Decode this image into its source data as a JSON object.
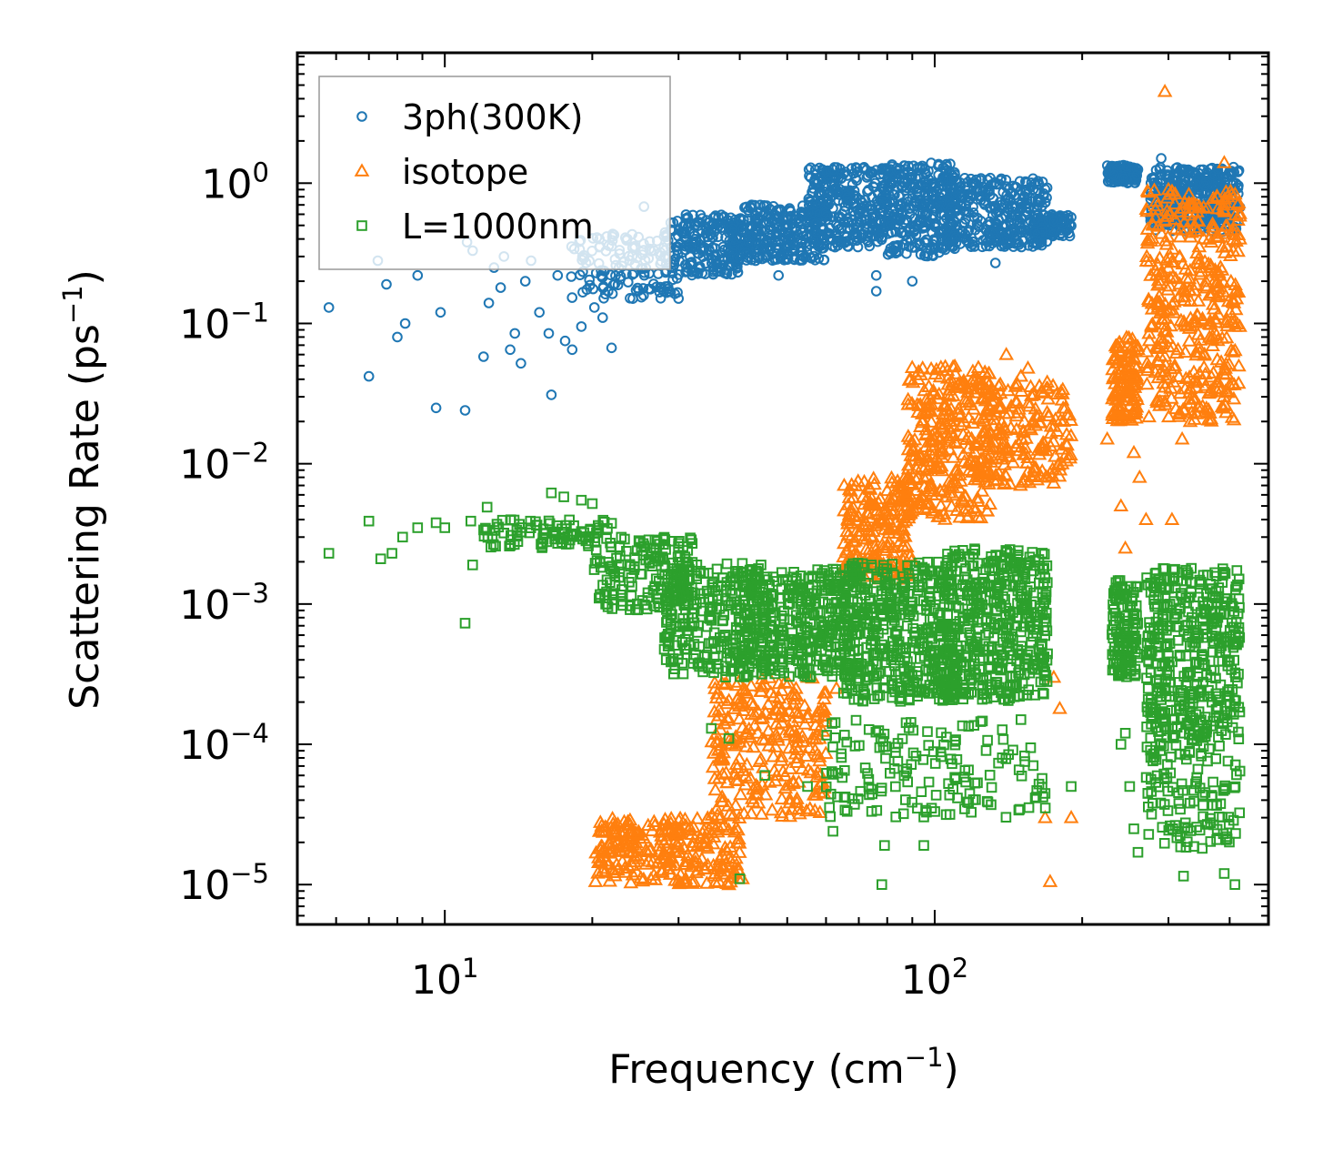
{
  "chart_data": {
    "type": "scatter",
    "xscale": "log",
    "yscale": "log",
    "xlabel": "Frequency (cm⁻¹)",
    "xlabel_main": "Frequency (cm",
    "xlabel_exp": "−1",
    "xlabel_tail": ")",
    "ylabel": "Scattering Rate (ps⁻¹)",
    "ylabel_main": "Scattering Rate (ps",
    "ylabel_exp": "−1",
    "ylabel_tail": ")",
    "xlim": [
      5,
      480
    ],
    "ylim": [
      5.2e-06,
      8.5
    ],
    "legend_position": "top-left",
    "x_ticks": [
      {
        "value": 10,
        "base": "10",
        "exp": "1"
      },
      {
        "value": 100,
        "base": "10",
        "exp": "2"
      }
    ],
    "y_ticks": [
      {
        "value": 1,
        "base": "10",
        "exp": "0"
      },
      {
        "value": 0.1,
        "base": "10",
        "exp": "−1"
      },
      {
        "value": 0.01,
        "base": "10",
        "exp": "−2"
      },
      {
        "value": 0.001,
        "base": "10",
        "exp": "−3"
      },
      {
        "value": 0.0001,
        "base": "10",
        "exp": "−4"
      },
      {
        "value": 1e-05,
        "base": "10",
        "exp": "−5"
      }
    ],
    "series": [
      {
        "name": "3ph(300K)",
        "marker": "circle",
        "color": "#1f77b4",
        "points": [
          [
            5.8,
            0.13
          ],
          [
            7.0,
            0.042
          ],
          [
            7.3,
            0.28
          ],
          [
            7.6,
            0.19
          ],
          [
            8.0,
            0.08
          ],
          [
            8.3,
            0.1
          ],
          [
            8.8,
            0.22
          ],
          [
            9.6,
            0.025
          ],
          [
            9.8,
            0.12
          ],
          [
            11.0,
            0.024
          ],
          [
            11.1,
            0.38
          ],
          [
            11.4,
            0.33
          ],
          [
            12.0,
            0.058
          ],
          [
            12.3,
            0.14
          ],
          [
            12.6,
            0.25
          ],
          [
            13.0,
            0.18
          ],
          [
            13.2,
            0.3
          ],
          [
            13.6,
            0.065
          ],
          [
            13.9,
            0.085
          ],
          [
            14.3,
            0.052
          ],
          [
            14.6,
            0.2
          ],
          [
            15.0,
            0.28
          ],
          [
            15.6,
            0.12
          ],
          [
            16.3,
            0.085
          ],
          [
            16.5,
            0.031
          ],
          [
            17.0,
            0.22
          ],
          [
            17.6,
            0.075
          ],
          [
            18.2,
            0.065
          ],
          [
            19.0,
            0.095
          ],
          [
            20.2,
            0.13
          ],
          [
            21.0,
            0.11
          ],
          [
            21.9,
            0.067
          ],
          [
            25.5,
            0.68
          ]
        ],
        "clusters": [
          {
            "x": [
              18,
              30
            ],
            "y": [
              0.15,
              0.45
            ],
            "n": 140
          },
          {
            "x": [
              28,
              40
            ],
            "y": [
              0.22,
              0.6
            ],
            "n": 200
          },
          {
            "x": [
              38,
              60
            ],
            "y": [
              0.28,
              0.7
            ],
            "n": 300
          },
          {
            "x": [
              55,
              80
            ],
            "y": [
              0.35,
              1.3
            ],
            "n": 300
          },
          {
            "x": [
              78,
              110
            ],
            "y": [
              0.3,
              1.4
            ],
            "n": 320
          },
          {
            "x": [
              105,
              170
            ],
            "y": [
              0.35,
              1.1
            ],
            "n": 350
          },
          {
            "x": [
              160,
              190
            ],
            "y": [
              0.42,
              0.6
            ],
            "n": 80
          },
          {
            "x": [
              225,
              260
            ],
            "y": [
              1.0,
              1.35
            ],
            "n": 120
          },
          {
            "x": [
              275,
              420
            ],
            "y": [
              0.45,
              1.3
            ],
            "n": 380
          }
        ],
        "scatter_points": [
          [
            76,
            0.17
          ],
          [
            76,
            0.22
          ],
          [
            90,
            0.2
          ],
          [
            48,
            0.22
          ],
          [
            133,
            0.27
          ],
          [
            290,
            1.5
          ]
        ]
      },
      {
        "name": "isotope",
        "marker": "triangle",
        "color": "#ff7f0e",
        "points": [
          [
            20.3,
            1.05e-05
          ],
          [
            34.0,
            1.3e-05
          ],
          [
            38.0,
            1e-05
          ],
          [
            40.5,
            1.1e-05
          ],
          [
            55.0,
            0.0003
          ],
          [
            63.0,
            0.00025
          ],
          [
            172.0,
            1.05e-05
          ],
          [
            190.0,
            3e-05
          ],
          [
            168.0,
            3e-05
          ],
          [
            175.0,
            0.0003
          ],
          [
            180.0,
            0.00018
          ],
          [
            295.0,
            4.5
          ],
          [
            240.0,
            0.005
          ],
          [
            270.0,
            0.004
          ],
          [
            305.0,
            0.004
          ],
          [
            245.0,
            0.0025
          ]
        ],
        "clusters": [
          {
            "x": [
              20,
              40
            ],
            "y": [
              1e-05,
              3e-05
            ],
            "n": 260
          },
          {
            "x": [
              35,
              60
            ],
            "y": [
              3e-05,
              0.0003
            ],
            "n": 260
          },
          {
            "x": [
              65,
              90
            ],
            "y": [
              0.0015,
              0.008
            ],
            "n": 220
          },
          {
            "x": [
              88,
              130
            ],
            "y": [
              0.004,
              0.05
            ],
            "n": 300
          },
          {
            "x": [
              125,
              190
            ],
            "y": [
              0.007,
              0.04
            ],
            "n": 200
          },
          {
            "x": [
              230,
              260
            ],
            "y": [
              0.02,
              0.08
            ],
            "n": 120
          },
          {
            "x": [
              270,
              420
            ],
            "y": [
              0.02,
              0.9
            ],
            "n": 400
          }
        ],
        "scatter_points": [
          [
            155,
            0.048
          ],
          [
            150,
            0.042
          ],
          [
            140,
            0.06
          ],
          [
            225,
            0.015
          ],
          [
            255,
            0.012
          ],
          [
            262,
            0.008
          ],
          [
            320,
            0.015
          ],
          [
            390,
            1.4
          ],
          [
            300,
            0.9
          ]
        ]
      },
      {
        "name": "L=1000nm",
        "marker": "square",
        "color": "#2ca02c",
        "points": [
          [
            5.8,
            0.0023
          ],
          [
            7.0,
            0.0039
          ],
          [
            7.4,
            0.0021
          ],
          [
            7.8,
            0.0023
          ],
          [
            8.2,
            0.003
          ],
          [
            8.8,
            0.0035
          ],
          [
            9.6,
            0.0038
          ],
          [
            10.0,
            0.0035
          ],
          [
            11.0,
            0.00073
          ],
          [
            11.3,
            0.0039
          ],
          [
            11.4,
            0.0019
          ],
          [
            12.2,
            0.0049
          ],
          [
            12.5,
            0.003
          ],
          [
            14.2,
            0.0037
          ],
          [
            16.5,
            0.0062
          ],
          [
            17.5,
            0.0058
          ],
          [
            19.0,
            0.0055
          ],
          [
            20.0,
            0.0052
          ],
          [
            30.0,
            0.00044
          ],
          [
            40.0,
            1.1e-05
          ],
          [
            78.0,
            1e-05
          ],
          [
            79.0,
            1.9e-05
          ],
          [
            95.0,
            1.9e-05
          ],
          [
            150.0,
            0.00015
          ],
          [
            190.0,
            5e-05
          ],
          [
            322.0,
            1.15e-05
          ],
          [
            390.0,
            1.2e-05
          ],
          [
            410.0,
            1e-05
          ]
        ],
        "clusters": [
          {
            "x": [
              12,
              22
            ],
            "y": [
              0.0025,
              0.004
            ],
            "n": 90
          },
          {
            "x": [
              20,
              32
            ],
            "y": [
              0.0009,
              0.003
            ],
            "n": 160
          },
          {
            "x": [
              28,
              45
            ],
            "y": [
              0.0003,
              0.002
            ],
            "n": 260
          },
          {
            "x": [
              40,
              70
            ],
            "y": [
              0.0003,
              0.0018
            ],
            "n": 400
          },
          {
            "x": [
              65,
              110
            ],
            "y": [
              0.0002,
              0.002
            ],
            "n": 450
          },
          {
            "x": [
              105,
              170
            ],
            "y": [
              0.0002,
              0.0025
            ],
            "n": 450
          },
          {
            "x": [
              230,
              260
            ],
            "y": [
              0.0003,
              0.0015
            ],
            "n": 140
          },
          {
            "x": [
              270,
              420
            ],
            "y": [
              0.0001,
              0.0018
            ],
            "n": 420
          },
          {
            "x": [
              60,
              170
            ],
            "y": [
              3e-05,
              0.00015
            ],
            "n": 160
          },
          {
            "x": [
              270,
              420
            ],
            "y": [
              1.8e-05,
              0.0001
            ],
            "n": 120
          }
        ],
        "scatter_points": [
          [
            35,
            0.00013
          ],
          [
            38,
            0.00011
          ],
          [
            45,
            6e-05
          ],
          [
            55,
            5e-05
          ],
          [
            62,
            2.4e-05
          ],
          [
            240,
            0.0001
          ],
          [
            245,
            0.00012
          ],
          [
            250,
            5e-05
          ],
          [
            255,
            2.5e-05
          ],
          [
            260,
            1.7e-05
          ]
        ]
      }
    ]
  }
}
